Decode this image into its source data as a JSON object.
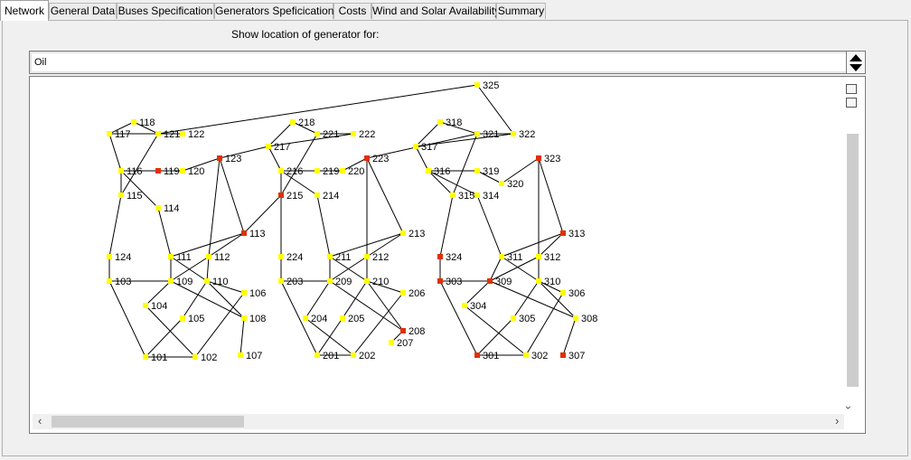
{
  "tabs": [
    {
      "label": "Network",
      "active": true
    },
    {
      "label": "General Data"
    },
    {
      "label": "Buses Specification"
    },
    {
      "label": "Generators Speficication"
    },
    {
      "label": "Costs"
    },
    {
      "label": "Wind and Solar Availability"
    },
    {
      "label": "Summary"
    }
  ],
  "generator_select": {
    "label": "Show location of generator for:",
    "value": "Oil"
  },
  "colors": {
    "bus_default": "#ffff00",
    "bus_with_selected_generator": "#e03000",
    "line": "#000000"
  },
  "network": {
    "buses": [
      {
        "id": "101"
      },
      {
        "id": "102"
      },
      {
        "id": "103"
      },
      {
        "id": "104"
      },
      {
        "id": "105"
      },
      {
        "id": "106"
      },
      {
        "id": "107"
      },
      {
        "id": "108"
      },
      {
        "id": "109"
      },
      {
        "id": "110"
      },
      {
        "id": "111"
      },
      {
        "id": "112"
      },
      {
        "id": "113",
        "generator": true
      },
      {
        "id": "114"
      },
      {
        "id": "115"
      },
      {
        "id": "116"
      },
      {
        "id": "117"
      },
      {
        "id": "118"
      },
      {
        "id": "119",
        "generator": true
      },
      {
        "id": "120"
      },
      {
        "id": "121"
      },
      {
        "id": "122"
      },
      {
        "id": "123",
        "generator": true
      },
      {
        "id": "124"
      },
      {
        "id": "201"
      },
      {
        "id": "202"
      },
      {
        "id": "203"
      },
      {
        "id": "204"
      },
      {
        "id": "205"
      },
      {
        "id": "206"
      },
      {
        "id": "207"
      },
      {
        "id": "208",
        "generator": true
      },
      {
        "id": "209"
      },
      {
        "id": "210"
      },
      {
        "id": "211"
      },
      {
        "id": "212"
      },
      {
        "id": "213"
      },
      {
        "id": "214"
      },
      {
        "id": "215",
        "generator": true
      },
      {
        "id": "216"
      },
      {
        "id": "217"
      },
      {
        "id": "218"
      },
      {
        "id": "219"
      },
      {
        "id": "220"
      },
      {
        "id": "221"
      },
      {
        "id": "222"
      },
      {
        "id": "223",
        "generator": true
      },
      {
        "id": "224"
      },
      {
        "id": "301",
        "generator": true
      },
      {
        "id": "302"
      },
      {
        "id": "303",
        "generator": true
      },
      {
        "id": "304"
      },
      {
        "id": "305"
      },
      {
        "id": "306"
      },
      {
        "id": "307",
        "generator": true
      },
      {
        "id": "308"
      },
      {
        "id": "309",
        "generator": true
      },
      {
        "id": "310"
      },
      {
        "id": "311"
      },
      {
        "id": "312"
      },
      {
        "id": "313",
        "generator": true
      },
      {
        "id": "314"
      },
      {
        "id": "315"
      },
      {
        "id": "316"
      },
      {
        "id": "317"
      },
      {
        "id": "318"
      },
      {
        "id": "319"
      },
      {
        "id": "320"
      },
      {
        "id": "321"
      },
      {
        "id": "322"
      },
      {
        "id": "323",
        "generator": true
      },
      {
        "id": "324",
        "generator": true
      },
      {
        "id": "325"
      }
    ],
    "lines": [
      [
        "101",
        "102"
      ],
      [
        "101",
        "103"
      ],
      [
        "101",
        "105"
      ],
      [
        "102",
        "104"
      ],
      [
        "102",
        "106"
      ],
      [
        "103",
        "109"
      ],
      [
        "103",
        "124"
      ],
      [
        "104",
        "109"
      ],
      [
        "105",
        "110"
      ],
      [
        "106",
        "110"
      ],
      [
        "107",
        "108"
      ],
      [
        "108",
        "109"
      ],
      [
        "108",
        "110"
      ],
      [
        "109",
        "111"
      ],
      [
        "109",
        "112"
      ],
      [
        "110",
        "111"
      ],
      [
        "110",
        "112"
      ],
      [
        "111",
        "113"
      ],
      [
        "111",
        "114"
      ],
      [
        "112",
        "113"
      ],
      [
        "112",
        "123"
      ],
      [
        "113",
        "123"
      ],
      [
        "113",
        "215"
      ],
      [
        "114",
        "116"
      ],
      [
        "115",
        "116"
      ],
      [
        "115",
        "121"
      ],
      [
        "115",
        "124"
      ],
      [
        "116",
        "117"
      ],
      [
        "116",
        "119"
      ],
      [
        "117",
        "118"
      ],
      [
        "117",
        "122"
      ],
      [
        "118",
        "121"
      ],
      [
        "119",
        "120"
      ],
      [
        "120",
        "123"
      ],
      [
        "121",
        "122"
      ],
      [
        "121",
        "325"
      ],
      [
        "123",
        "217"
      ],
      [
        "201",
        "202"
      ],
      [
        "201",
        "203"
      ],
      [
        "201",
        "205"
      ],
      [
        "202",
        "204"
      ],
      [
        "202",
        "206"
      ],
      [
        "203",
        "209"
      ],
      [
        "203",
        "224"
      ],
      [
        "204",
        "209"
      ],
      [
        "205",
        "210"
      ],
      [
        "206",
        "210"
      ],
      [
        "207",
        "208"
      ],
      [
        "208",
        "209"
      ],
      [
        "208",
        "210"
      ],
      [
        "209",
        "211"
      ],
      [
        "209",
        "212"
      ],
      [
        "210",
        "211"
      ],
      [
        "210",
        "212"
      ],
      [
        "211",
        "213"
      ],
      [
        "211",
        "214"
      ],
      [
        "212",
        "213"
      ],
      [
        "212",
        "223"
      ],
      [
        "213",
        "223"
      ],
      [
        "214",
        "216"
      ],
      [
        "215",
        "216"
      ],
      [
        "215",
        "221"
      ],
      [
        "215",
        "224"
      ],
      [
        "216",
        "217"
      ],
      [
        "216",
        "219"
      ],
      [
        "217",
        "218"
      ],
      [
        "217",
        "222"
      ],
      [
        "218",
        "221"
      ],
      [
        "219",
        "220"
      ],
      [
        "220",
        "223"
      ],
      [
        "221",
        "222"
      ],
      [
        "223",
        "321"
      ],
      [
        "301",
        "302"
      ],
      [
        "301",
        "303"
      ],
      [
        "301",
        "305"
      ],
      [
        "302",
        "304"
      ],
      [
        "302",
        "306"
      ],
      [
        "303",
        "309"
      ],
      [
        "303",
        "324"
      ],
      [
        "304",
        "309"
      ],
      [
        "305",
        "310"
      ],
      [
        "306",
        "310"
      ],
      [
        "307",
        "308"
      ],
      [
        "308",
        "309"
      ],
      [
        "308",
        "310"
      ],
      [
        "309",
        "311"
      ],
      [
        "309",
        "312"
      ],
      [
        "310",
        "311"
      ],
      [
        "310",
        "312"
      ],
      [
        "311",
        "313"
      ],
      [
        "311",
        "314"
      ],
      [
        "312",
        "313"
      ],
      [
        "312",
        "323"
      ],
      [
        "313",
        "323"
      ],
      [
        "314",
        "316"
      ],
      [
        "315",
        "316"
      ],
      [
        "315",
        "321"
      ],
      [
        "315",
        "324"
      ],
      [
        "316",
        "317"
      ],
      [
        "316",
        "319"
      ],
      [
        "317",
        "318"
      ],
      [
        "317",
        "322"
      ],
      [
        "318",
        "321"
      ],
      [
        "319",
        "320"
      ],
      [
        "320",
        "323"
      ],
      [
        "321",
        "322"
      ],
      [
        "322",
        "325"
      ]
    ]
  }
}
